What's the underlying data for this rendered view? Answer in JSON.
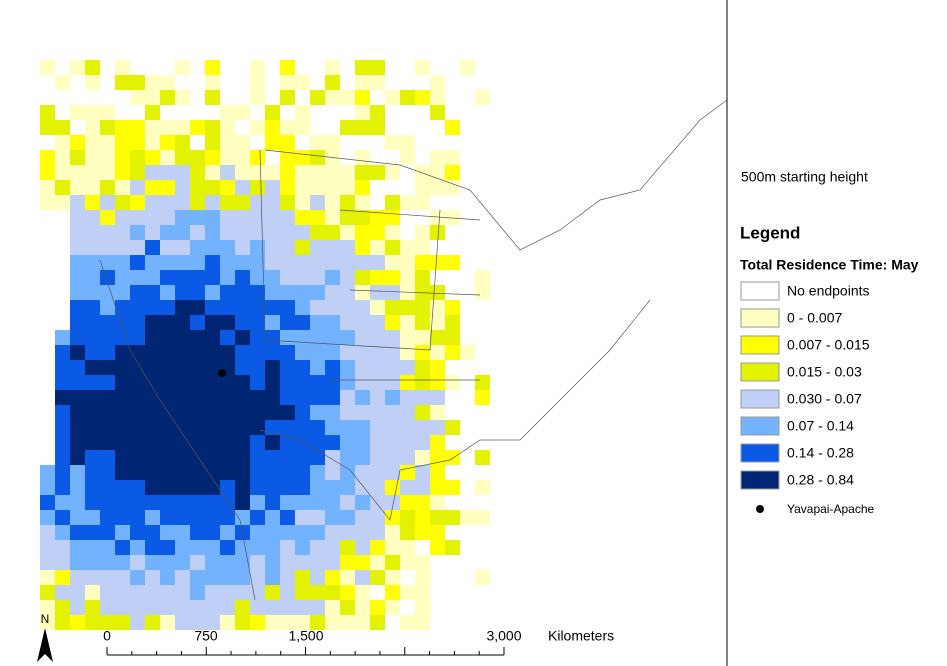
{
  "subtitle": "500m starting height",
  "legend": {
    "title": "Legend",
    "subtitle": "Total Residence Time: May",
    "classes": [
      {
        "label": "No endpoints",
        "color": "#ffffff"
      },
      {
        "label": "0 - 0.007",
        "color": "#ffffc0"
      },
      {
        "label": "0.007 - 0.015",
        "color": "#ffff00"
      },
      {
        "label": "0.015 - 0.03",
        "color": "#e3f200"
      },
      {
        "label": "0.030 - 0.07",
        "color": "#bfcff5"
      },
      {
        "label": "0.07 - 0.14",
        "color": "#73b2ff"
      },
      {
        "label": "0.14 - 0.28",
        "color": "#0a5ae6"
      },
      {
        "label": "0.28 - 0.84",
        "color": "#002673"
      }
    ],
    "point": {
      "label": "Yavapai-Apache",
      "color": "#000000"
    }
  },
  "scale_bar": {
    "ticks": [
      "0",
      "750",
      "1,500",
      "3,000"
    ],
    "unit": "Kilometers"
  },
  "north": "N"
}
